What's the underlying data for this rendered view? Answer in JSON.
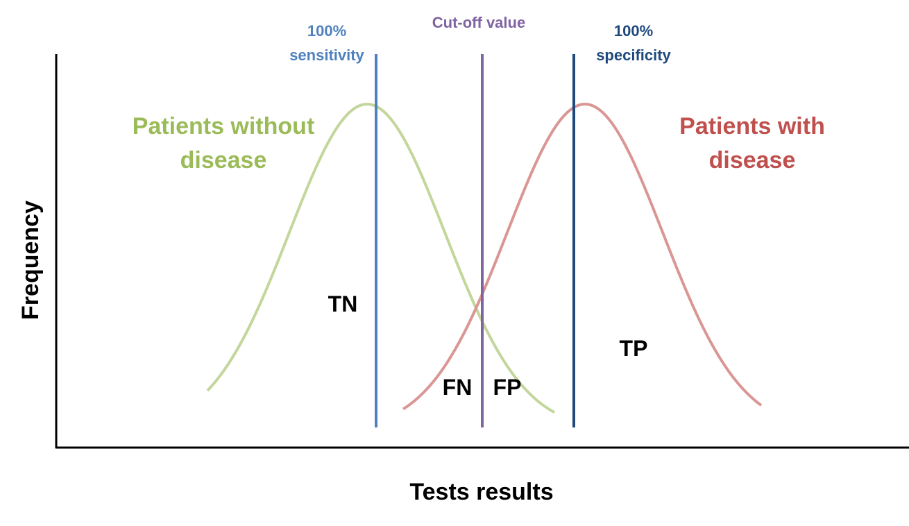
{
  "axes": {
    "x_label": "Tests results",
    "y_label": "Frequency"
  },
  "curves": {
    "without_disease": {
      "label_line1": "Patients without",
      "label_line2": "disease",
      "color": "#9bbb59",
      "stroke": "#c3d69b"
    },
    "with_disease": {
      "label_line1": "Patients with",
      "label_line2": "disease",
      "color": "#c0504d",
      "stroke": "#d99694"
    }
  },
  "thresholds": {
    "sensitivity": {
      "line1": "100%",
      "line2": "sensitivity",
      "color": "#4f81bd"
    },
    "cutoff": {
      "line1": "Cut-off value",
      "color": "#8064a2"
    },
    "specificity": {
      "line1": "100%",
      "line2": "specificity",
      "color": "#1f497d"
    }
  },
  "regions": {
    "tn": "TN",
    "fn": "FN",
    "fp": "FP",
    "tp": "TP"
  }
}
